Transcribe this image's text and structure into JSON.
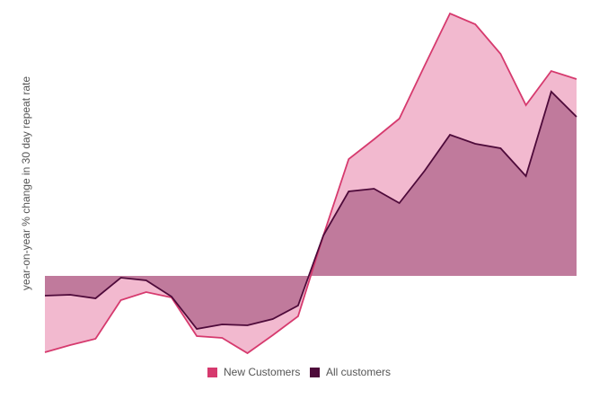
{
  "chart_data": {
    "type": "area",
    "y_label": "year-on-year % change in 30 day repeat rate",
    "categories": [
      null,
      null,
      null,
      null,
      null,
      null,
      null,
      null,
      null,
      null,
      null,
      null,
      null,
      null,
      null,
      null,
      null,
      null,
      null,
      null,
      null,
      null
    ],
    "series": [
      {
        "name": "New Customers",
        "color": "#d63a6e",
        "fill": "#f2b9cf",
        "values": [
          -8.5,
          -7.7,
          -7,
          -2.7,
          -1.8,
          -2.4,
          -6.7,
          -6.9,
          -8.6,
          -6.6,
          -4.5,
          4.5,
          13,
          15.2,
          17.5,
          23.4,
          29.2,
          28,
          24.7,
          19,
          22.8,
          21.9
        ]
      },
      {
        "name": "All customers",
        "color": "#4e0a3a",
        "fill": "#c07a9c",
        "values": [
          -2.2,
          -2.1,
          -2.5,
          -0.2,
          -0.5,
          -2.3,
          -5.9,
          -5.4,
          -5.5,
          -4.8,
          -3.3,
          4.5,
          9.4,
          9.7,
          8.1,
          11.7,
          15.7,
          14.7,
          14.2,
          11.1,
          20.5,
          17.7
        ]
      }
    ],
    "ylim": [
      -9,
      30
    ],
    "legend": "bottom"
  }
}
